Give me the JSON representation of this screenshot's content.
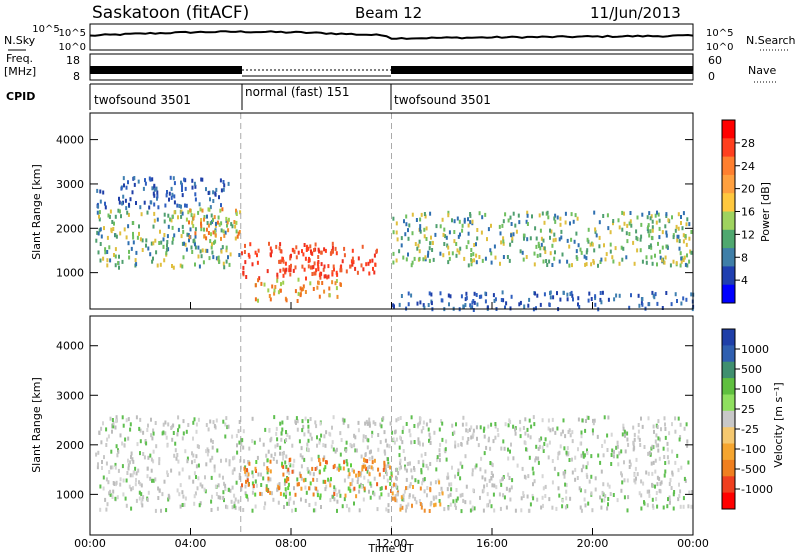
{
  "header": {
    "station": "Saskatoon (fitACF)",
    "beam": "Beam 12",
    "date": "11/Jun/2013"
  },
  "top_panels": {
    "nsky_label": "N.Sky",
    "nsky_ticks": [
      "10^5",
      "10^0"
    ],
    "nsearch_label": "N.Search",
    "nsearch_ticks": [
      "10^5",
      "10^0"
    ],
    "freq_label_1": "Freq.",
    "freq_label_2": "[MHz]",
    "freq_ticks": [
      "18",
      "8"
    ],
    "nave_label": "Nave",
    "nave_ticks": [
      "60",
      "0"
    ],
    "cpid_label": "CPID",
    "cpid_segments": [
      {
        "name": "twofsound 3501",
        "start": 0,
        "end": 6
      },
      {
        "name": "normal (fast) 151",
        "start": 6,
        "end": 12
      },
      {
        "name": "twofsound 3501",
        "start": 12,
        "end": 24
      }
    ]
  },
  "chart_data": [
    {
      "type": "heatmap",
      "parameter": "Power",
      "ylabel": "Slant Range [km]",
      "ylim": [
        180,
        4600
      ],
      "yticks": [
        "1000",
        "2000",
        "3000",
        "4000"
      ],
      "xlim": [
        0,
        24
      ],
      "colorbar": {
        "label": "Power [dB]",
        "range": [
          0,
          32
        ],
        "ticks": [
          "4",
          "8",
          "12",
          "16",
          "20",
          "24",
          "28"
        ]
      },
      "regions": [
        {
          "t": [
            0.2,
            6.0
          ],
          "r": [
            1150,
            2450
          ],
          "level": "medium"
        },
        {
          "t": [
            0.2,
            5.5
          ],
          "r": [
            2500,
            3200
          ],
          "level": "low"
        },
        {
          "t": [
            3.8,
            6.0
          ],
          "r": [
            1800,
            2500
          ],
          "level": "high"
        },
        {
          "t": [
            6.0,
            10.0
          ],
          "r": [
            900,
            1700
          ],
          "level": "very high"
        },
        {
          "t": [
            7.5,
            11.5
          ],
          "r": [
            1000,
            1650
          ],
          "level": "very high"
        },
        {
          "t": [
            6.5,
            10.0
          ],
          "r": [
            400,
            900
          ],
          "level": "high"
        },
        {
          "t": [
            12.0,
            24.0
          ],
          "r": [
            1200,
            2400
          ],
          "level": "medium"
        },
        {
          "t": [
            12.0,
            24.0
          ],
          "r": [
            200,
            600
          ],
          "level": "low"
        }
      ]
    },
    {
      "type": "heatmap",
      "parameter": "Velocity",
      "ylabel": "Slant Range [km]",
      "ylim": [
        180,
        4600
      ],
      "yticks": [
        "1000",
        "2000",
        "3000",
        "4000"
      ],
      "xlim": [
        0,
        24
      ],
      "xticks": [
        "00:00",
        "04:00",
        "08:00",
        "12:00",
        "16:00",
        "20:00",
        "00:00"
      ],
      "xlabel": "Time UT",
      "colorbar": {
        "label": "Velocity [m s⁻¹]",
        "ticks": [
          "1000",
          "500",
          "100",
          "25",
          "-25",
          "-100",
          "-500",
          "-1000"
        ]
      },
      "regions": [
        {
          "t": [
            0.2,
            24.0
          ],
          "r": [
            700,
            2600
          ],
          "velocity": "~0 (ground scatter)"
        },
        {
          "t": [
            6.0,
            12.0
          ],
          "r": [
            1000,
            1750
          ],
          "velocity": "-100 to -500"
        },
        {
          "t": [
            12.0,
            14.0
          ],
          "r": [
            700,
            1300
          ],
          "velocity": "-100"
        }
      ]
    }
  ]
}
